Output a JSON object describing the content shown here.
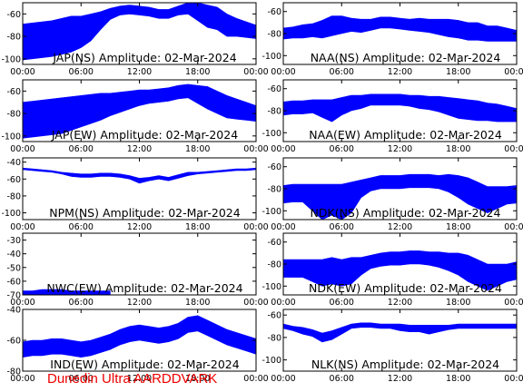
{
  "footer": "Dunedin Ultra AARDDVARK",
  "colors": {
    "trace": "#0000ff",
    "footer": "#ee0000",
    "axis": "#000000"
  },
  "chart_data": [
    {
      "type": "line",
      "title": "JAP(NS) Amplitude: 02-Mar-2024",
      "x_tick_labels": [
        "00:00",
        "06:00",
        "12:00",
        "18:00",
        "00:00"
      ],
      "y_tick_values": [
        -100,
        -80,
        -60
      ],
      "ylim": [
        -105,
        -50
      ],
      "series": [
        {
          "x": [
            0,
            1,
            2,
            3,
            4,
            5,
            6,
            7,
            8,
            9,
            10,
            11,
            12,
            13,
            14,
            15,
            16,
            17,
            18,
            19,
            20,
            21,
            22,
            23,
            24
          ],
          "center": [
            -85,
            -84,
            -83,
            -82,
            -80,
            -78,
            -76,
            -72,
            -66,
            -60,
            -57,
            -56,
            -57,
            -58,
            -60,
            -60,
            -57,
            -55,
            -58,
            -62,
            -64,
            -70,
            -72,
            -74,
            -76
          ],
          "band": [
            16,
            16,
            16,
            16,
            16,
            16,
            14,
            12,
            8,
            5,
            4,
            4,
            4,
            4,
            4,
            4,
            4,
            5,
            8,
            10,
            10,
            10,
            8,
            7,
            6
          ]
        }
      ]
    },
    {
      "type": "line",
      "title": "NAA(NS) Amplitude: 02-Mar-2024",
      "x_tick_labels": [
        "00:00",
        "06:00",
        "12:00",
        "18:00",
        "00:00"
      ],
      "y_tick_values": [
        -100,
        -80,
        -60
      ],
      "ylim": [
        -108,
        -52
      ],
      "series": [
        {
          "x": [
            0,
            1,
            2,
            3,
            4,
            5,
            6,
            7,
            8,
            9,
            10,
            11,
            12,
            13,
            14,
            15,
            16,
            17,
            18,
            19,
            20,
            21,
            22,
            23,
            24
          ],
          "center": [
            -80,
            -79,
            -78,
            -77,
            -76,
            -73,
            -72,
            -72,
            -73,
            -72,
            -70,
            -70,
            -71,
            -72,
            -72,
            -73,
            -74,
            -75,
            -76,
            -78,
            -78,
            -80,
            -80,
            -81,
            -82
          ],
          "band": [
            5,
            5,
            6,
            6,
            8,
            9,
            8,
            6,
            6,
            5,
            5,
            5,
            5,
            5,
            6,
            6,
            7,
            8,
            8,
            8,
            8,
            7,
            7,
            6,
            5
          ]
        }
      ]
    },
    {
      "type": "line",
      "title": "JAP(EW) Amplitude: 02-Mar-2024",
      "x_tick_labels": [
        "00:00",
        "06:00",
        "12:00",
        "18:00",
        "00:00"
      ],
      "y_tick_values": [
        -100,
        -80,
        -60
      ],
      "ylim": [
        -105,
        -50
      ],
      "series": [
        {
          "x": [
            0,
            1,
            2,
            3,
            4,
            5,
            6,
            7,
            8,
            9,
            10,
            11,
            12,
            13,
            14,
            15,
            16,
            17,
            18,
            19,
            20,
            21,
            22,
            23,
            24
          ],
          "center": [
            -86,
            -85,
            -84,
            -83,
            -82,
            -80,
            -78,
            -76,
            -74,
            -72,
            -70,
            -68,
            -66,
            -65,
            -64,
            -63,
            -61,
            -60,
            -63,
            -66,
            -70,
            -74,
            -76,
            -78,
            -80
          ],
          "band": [
            16,
            16,
            16,
            16,
            16,
            15,
            14,
            13,
            12,
            10,
            9,
            8,
            7,
            6,
            6,
            6,
            6,
            6,
            8,
            10,
            10,
            10,
            9,
            8,
            7
          ]
        }
      ]
    },
    {
      "type": "line",
      "title": "NAA(EW) Amplitude: 02-Mar-2024",
      "x_tick_labels": [
        "00:00",
        "06:00",
        "12:00",
        "18:00",
        "00:00"
      ],
      "y_tick_values": [
        -100,
        -80,
        -60
      ],
      "ylim": [
        -108,
        -52
      ],
      "series": [
        {
          "x": [
            0,
            1,
            2,
            3,
            4,
            5,
            6,
            7,
            8,
            9,
            10,
            11,
            12,
            13,
            14,
            15,
            16,
            17,
            18,
            19,
            20,
            21,
            22,
            23,
            24
          ],
          "center": [
            -78,
            -77,
            -77,
            -76,
            -78,
            -80,
            -76,
            -73,
            -72,
            -70,
            -70,
            -70,
            -70,
            -71,
            -72,
            -73,
            -74,
            -76,
            -78,
            -79,
            -80,
            -81,
            -82,
            -83,
            -84
          ],
          "band": [
            6,
            6,
            6,
            6,
            8,
            10,
            8,
            7,
            6,
            5,
            5,
            5,
            5,
            5,
            6,
            6,
            7,
            8,
            9,
            9,
            9,
            8,
            8,
            7,
            6
          ]
        }
      ]
    },
    {
      "type": "line",
      "title": "NPM(NS) Amplitude: 02-Mar-2024",
      "x_tick_labels": [
        "00:00",
        "06:00",
        "12:00",
        "18:00",
        "00:00"
      ],
      "y_tick_values": [
        -100,
        -80,
        -60,
        -40
      ],
      "ylim": [
        -108,
        -35
      ],
      "series": [
        {
          "x": [
            0,
            1,
            2,
            3,
            4,
            5,
            6,
            7,
            8,
            9,
            10,
            11,
            12,
            13,
            14,
            15,
            16,
            17,
            18,
            19,
            20,
            21,
            22,
            23,
            24
          ],
          "center": [
            -48,
            -49,
            -50,
            -51,
            -53,
            -55,
            -56,
            -56,
            -55,
            -55,
            -56,
            -58,
            -62,
            -60,
            -58,
            -60,
            -57,
            -54,
            -53,
            -52,
            -51,
            -50,
            -49,
            -49,
            -48
          ],
          "band": [
            1,
            1,
            1,
            1,
            1,
            2,
            2,
            2,
            2,
            2,
            2,
            2,
            3,
            2,
            2,
            2,
            2,
            2,
            1,
            1,
            1,
            1,
            1,
            1,
            1
          ]
        }
      ]
    },
    {
      "type": "line",
      "title": "NDK(NS) Amplitude: 02-Mar-2024",
      "x_tick_labels": [
        "00:00",
        "06:00",
        "12:00",
        "18:00",
        "00:00"
      ],
      "y_tick_values": [
        -100,
        -80,
        -60
      ],
      "ylim": [
        -108,
        -52
      ],
      "series": [
        {
          "x": [
            0,
            1,
            2,
            3,
            4,
            5,
            6,
            7,
            8,
            9,
            10,
            11,
            12,
            13,
            14,
            15,
            16,
            17,
            18,
            19,
            20,
            21,
            22,
            23,
            24
          ],
          "center": [
            -85,
            -84,
            -84,
            -88,
            -92,
            -90,
            -92,
            -88,
            -80,
            -76,
            -74,
            -74,
            -74,
            -73,
            -73,
            -73,
            -74,
            -75,
            -78,
            -82,
            -86,
            -90,
            -88,
            -86,
            -85
          ],
          "band": [
            8,
            8,
            8,
            12,
            16,
            14,
            16,
            14,
            8,
            6,
            6,
            6,
            6,
            6,
            6,
            6,
            6,
            8,
            10,
            12,
            12,
            12,
            10,
            8,
            8
          ]
        }
      ]
    },
    {
      "type": "line",
      "title": "NWC(EW) Amplitude: 02-Mar-2024",
      "x_tick_labels": [
        "00:00",
        "06:00",
        "12:00",
        "18:00",
        "00:00"
      ],
      "y_tick_values": [
        -70,
        -60,
        -50,
        -40,
        -30
      ],
      "ylim": [
        -70,
        -25
      ],
      "series": [
        {
          "x": [
            0,
            1,
            2,
            3,
            4,
            5,
            6,
            7,
            8,
            9
          ],
          "center": [
            -69,
            -69,
            -68,
            -68,
            -68,
            -69,
            -69,
            -69,
            -69,
            -69
          ],
          "band": [
            2,
            2,
            2,
            2,
            2,
            2,
            2,
            2,
            2,
            2
          ]
        }
      ]
    },
    {
      "type": "line",
      "title": "NDK(EW) Amplitude: 02-Mar-2024",
      "x_tick_labels": [
        "00:00",
        "06:00",
        "12:00",
        "18:00",
        "00:00"
      ],
      "y_tick_values": [
        -100,
        -80,
        -60
      ],
      "ylim": [
        -108,
        -52
      ],
      "series": [
        {
          "x": [
            0,
            1,
            2,
            3,
            4,
            5,
            6,
            7,
            8,
            9,
            10,
            11,
            12,
            13,
            14,
            15,
            16,
            17,
            18,
            19,
            20,
            21,
            22,
            23,
            24
          ],
          "center": [
            -84,
            -84,
            -84,
            -86,
            -88,
            -86,
            -88,
            -86,
            -82,
            -78,
            -76,
            -75,
            -75,
            -74,
            -74,
            -75,
            -76,
            -78,
            -80,
            -84,
            -88,
            -92,
            -90,
            -88,
            -86
          ],
          "band": [
            8,
            8,
            8,
            10,
            12,
            12,
            12,
            12,
            8,
            6,
            6,
            6,
            6,
            6,
            6,
            6,
            7,
            8,
            10,
            12,
            12,
            12,
            10,
            8,
            8
          ]
        }
      ]
    },
    {
      "type": "line",
      "title": "IND(EW) Amplitude: 02-Mar-2024",
      "x_tick_labels": [
        "00:00",
        "06:00",
        "12:00",
        "18:00",
        "00:00"
      ],
      "y_tick_values": [
        -80,
        -60,
        -40
      ],
      "ylim": [
        -80,
        -40
      ],
      "series": [
        {
          "x": [
            0,
            1,
            2,
            3,
            4,
            5,
            6,
            7,
            8,
            9,
            10,
            11,
            12,
            13,
            14,
            15,
            16,
            17,
            18,
            19,
            20,
            21,
            22,
            23,
            24
          ],
          "center": [
            -66,
            -65,
            -65,
            -64,
            -64,
            -65,
            -66,
            -65,
            -63,
            -61,
            -58,
            -56,
            -55,
            -56,
            -57,
            -56,
            -54,
            -50,
            -49,
            -52,
            -55,
            -58,
            -60,
            -62,
            -64
          ],
          "band": [
            5,
            5,
            5,
            5,
            5,
            5,
            5,
            5,
            5,
            5,
            5,
            5,
            5,
            5,
            5,
            5,
            5,
            5,
            5,
            5,
            5,
            5,
            5,
            5,
            5
          ]
        }
      ]
    },
    {
      "type": "line",
      "title": "NLK(NS) Amplitude: 02-Mar-2024",
      "x_tick_labels": [
        "00:00",
        "06:00",
        "12:00",
        "18:00",
        "00:00"
      ],
      "y_tick_values": [
        -100,
        -80,
        -60
      ],
      "ylim": [
        -110,
        -55
      ],
      "series": [
        {
          "x": [
            0,
            1,
            2,
            3,
            4,
            5,
            6,
            7,
            8,
            9,
            10,
            11,
            12,
            13,
            14,
            15,
            16,
            17,
            18,
            19,
            20,
            21,
            22,
            23,
            24
          ],
          "center": [
            -70,
            -72,
            -74,
            -76,
            -80,
            -78,
            -74,
            -70,
            -69,
            -69,
            -70,
            -70,
            -71,
            -72,
            -72,
            -73,
            -72,
            -71,
            -70,
            -70,
            -70,
            -70,
            -70,
            -70,
            -70
          ],
          "band": [
            2,
            2,
            3,
            3,
            4,
            4,
            3,
            2,
            2,
            2,
            2,
            2,
            3,
            3,
            3,
            4,
            3,
            2,
            2,
            2,
            2,
            2,
            2,
            2,
            2
          ]
        }
      ]
    }
  ]
}
